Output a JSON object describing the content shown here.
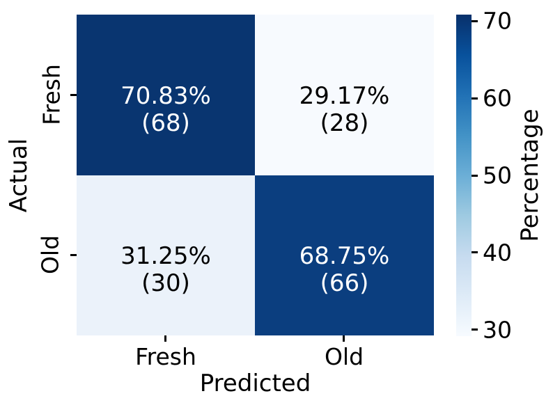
{
  "chart_data": {
    "type": "heatmap",
    "title": "",
    "xlabel": "Predicted",
    "ylabel": "Actual",
    "x_categories": [
      "Fresh",
      "Old"
    ],
    "y_categories": [
      "Fresh",
      "Old"
    ],
    "values_percent": [
      [
        70.83,
        29.17
      ],
      [
        31.25,
        68.75
      ]
    ],
    "counts": [
      [
        68,
        28
      ],
      [
        30,
        66
      ]
    ],
    "cells": [
      {
        "actual": "Fresh",
        "predicted": "Fresh",
        "pct": "70.83%",
        "count": "(68)",
        "value": 70.83,
        "n": 68,
        "bg": "#093570",
        "fg": "#ffffff"
      },
      {
        "actual": "Fresh",
        "predicted": "Old",
        "pct": "29.17%",
        "count": "(28)",
        "value": 29.17,
        "n": 28,
        "bg": "#f7fafe",
        "fg": "#000000"
      },
      {
        "actual": "Old",
        "predicted": "Fresh",
        "pct": "31.25%",
        "count": "(30)",
        "value": 31.25,
        "n": 30,
        "bg": "#ebf2fa",
        "fg": "#000000"
      },
      {
        "actual": "Old",
        "predicted": "Old",
        "pct": "68.75%",
        "count": "(66)",
        "value": 68.75,
        "n": 66,
        "bg": "#0b3e7f",
        "fg": "#ffffff"
      }
    ],
    "colorbar": {
      "label": "Percentage",
      "ticks": [
        70,
        60,
        50,
        40,
        30
      ],
      "vmin": 29.17,
      "vmax": 70.83,
      "colormap": "Blues",
      "gradient_top_to_bottom": [
        "#08306b",
        "#08519c",
        "#2171b5",
        "#4292c6",
        "#6baed6",
        "#9ecae1",
        "#c6dbef",
        "#deebf7",
        "#f7fbff"
      ]
    },
    "grid": false,
    "legend_position": "colorbar-right"
  }
}
